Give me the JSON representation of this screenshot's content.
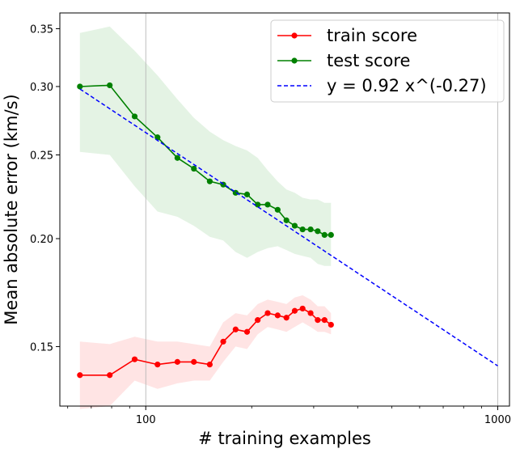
{
  "chart_data": {
    "type": "line",
    "xlabel": "# training examples",
    "ylabel": "Mean absolute error (km/s)",
    "x_scale": "log",
    "y_scale": "log",
    "xlim": [
      57,
      1080
    ],
    "ylim": [
      0.128,
      0.365
    ],
    "x_ticks": [
      100,
      1000
    ],
    "x_tick_labels": [
      "100",
      "1000"
    ],
    "y_ticks": [
      0.15,
      0.2,
      0.25,
      0.3,
      0.35
    ],
    "y_tick_labels": [
      "0.15",
      "0.20",
      "0.25",
      "0.30",
      "0.35"
    ],
    "grid": "vertical major",
    "legend_position": "top-right",
    "x": [
      65,
      79,
      93,
      108,
      123,
      137,
      152,
      166,
      180,
      194,
      208,
      222,
      237,
      251,
      265,
      279,
      294,
      308,
      322,
      336
    ],
    "series": [
      {
        "name": "train score",
        "color": "#ff0000",
        "values": [
          0.139,
          0.139,
          0.145,
          0.143,
          0.144,
          0.144,
          0.143,
          0.152,
          0.157,
          0.156,
          0.161,
          0.164,
          0.163,
          0.162,
          0.165,
          0.166,
          0.164,
          0.161,
          0.161,
          0.159
        ],
        "band_low": [
          0.127,
          0.128,
          0.137,
          0.134,
          0.136,
          0.137,
          0.137,
          0.144,
          0.15,
          0.149,
          0.155,
          0.158,
          0.157,
          0.156,
          0.158,
          0.16,
          0.158,
          0.156,
          0.156,
          0.155
        ],
        "band_high": [
          0.152,
          0.151,
          0.154,
          0.152,
          0.152,
          0.151,
          0.15,
          0.16,
          0.164,
          0.163,
          0.168,
          0.17,
          0.169,
          0.168,
          0.171,
          0.172,
          0.17,
          0.167,
          0.167,
          0.164
        ]
      },
      {
        "name": "test score",
        "color": "#008000",
        "values": [
          0.3,
          0.301,
          0.277,
          0.262,
          0.248,
          0.241,
          0.233,
          0.231,
          0.226,
          0.225,
          0.219,
          0.219,
          0.216,
          0.21,
          0.207,
          0.205,
          0.205,
          0.204,
          0.202,
          0.202
        ],
        "band_low": [
          0.252,
          0.25,
          0.23,
          0.215,
          0.212,
          0.207,
          0.201,
          0.199,
          0.193,
          0.19,
          0.193,
          0.195,
          0.196,
          0.194,
          0.192,
          0.191,
          0.19,
          0.187,
          0.186,
          0.186
        ],
        "band_high": [
          0.346,
          0.352,
          0.33,
          0.309,
          0.29,
          0.276,
          0.266,
          0.26,
          0.256,
          0.253,
          0.248,
          0.24,
          0.233,
          0.228,
          0.226,
          0.223,
          0.222,
          0.222,
          0.22,
          0.22
        ]
      }
    ],
    "fit": {
      "name": "y = 0.92 x^(-0.27)",
      "color": "#0000ff",
      "coefficient": 0.92,
      "exponent": -0.27,
      "x_range": [
        65,
        1000
      ]
    }
  }
}
